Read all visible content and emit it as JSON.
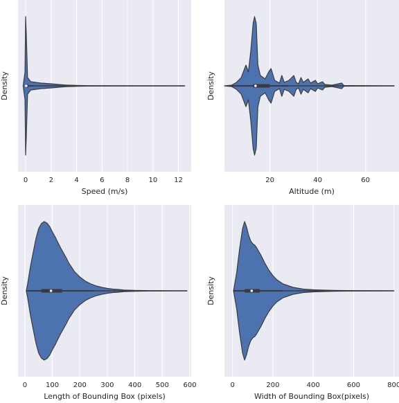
{
  "chart_data": [
    {
      "type": "violin",
      "xlabel": "Speed (m/s)",
      "ylabel": "Density",
      "xlim": [
        -0.6,
        13.0
      ],
      "xticks": [
        0,
        2,
        4,
        6,
        8,
        10,
        12
      ],
      "grid": true,
      "box": {
        "whisker_low": 0,
        "q1": 0.0,
        "median": 0.05,
        "q3": 0.2,
        "whisker_high": 0.6,
        "max": 12.5
      },
      "density": [
        [
          -0.2,
          0.0
        ],
        [
          -0.05,
          0.2
        ],
        [
          0.0,
          1.0
        ],
        [
          0.06,
          0.7
        ],
        [
          0.15,
          0.12
        ],
        [
          0.4,
          0.06
        ],
        [
          0.8,
          0.05
        ],
        [
          1.2,
          0.04
        ],
        [
          1.6,
          0.035
        ],
        [
          2.0,
          0.03
        ],
        [
          2.6,
          0.02
        ],
        [
          3.2,
          0.012
        ],
        [
          4.0,
          0.006
        ],
        [
          5.0,
          0.003
        ],
        [
          7.0,
          0.001
        ],
        [
          12.5,
          0.0
        ]
      ]
    },
    {
      "type": "violin",
      "xlabel": "Altitude (m)",
      "ylabel": "Density",
      "xlim": [
        1,
        74
      ],
      "xticks": [
        20,
        40,
        60
      ],
      "grid": true,
      "box": {
        "whisker_low": 3,
        "q1": 13,
        "median": 14,
        "q3": 20,
        "whisker_high": 28,
        "max": 72
      },
      "density": [
        [
          1,
          0.0
        ],
        [
          4,
          0.01
        ],
        [
          6,
          0.05
        ],
        [
          8,
          0.12
        ],
        [
          10,
          0.3
        ],
        [
          11,
          0.2
        ],
        [
          12,
          0.5
        ],
        [
          13,
          0.9
        ],
        [
          13.6,
          1.0
        ],
        [
          14.3,
          0.9
        ],
        [
          15,
          0.3
        ],
        [
          16,
          0.15
        ],
        [
          18,
          0.1
        ],
        [
          19.5,
          0.2
        ],
        [
          20.5,
          0.25
        ],
        [
          22,
          0.08
        ],
        [
          24,
          0.04
        ],
        [
          25,
          0.15
        ],
        [
          26,
          0.05
        ],
        [
          28,
          0.08
        ],
        [
          30,
          0.15
        ],
        [
          31,
          0.05
        ],
        [
          32,
          0.03
        ],
        [
          33,
          0.12
        ],
        [
          34,
          0.05
        ],
        [
          36,
          0.1
        ],
        [
          37,
          0.04
        ],
        [
          39,
          0.08
        ],
        [
          40,
          0.03
        ],
        [
          42,
          0.06
        ],
        [
          43,
          0.02
        ],
        [
          46,
          0.01
        ],
        [
          50,
          0.04
        ],
        [
          51,
          0.005
        ],
        [
          72,
          0.0
        ]
      ]
    },
    {
      "type": "violin",
      "xlabel": "Length of Bounding Box (pixels)",
      "ylabel": "Density",
      "xlim": [
        -25,
        605
      ],
      "xticks": [
        0,
        100,
        200,
        300,
        400,
        500,
        600
      ],
      "grid": true,
      "box": {
        "whisker_low": 5,
        "q1": 60,
        "median": 95,
        "q3": 135,
        "whisker_high": 250,
        "max": 590
      },
      "density": [
        [
          5,
          0.0
        ],
        [
          10,
          0.1
        ],
        [
          20,
          0.35
        ],
        [
          30,
          0.55
        ],
        [
          40,
          0.75
        ],
        [
          50,
          0.9
        ],
        [
          60,
          0.97
        ],
        [
          70,
          1.0
        ],
        [
          80,
          0.98
        ],
        [
          90,
          0.93
        ],
        [
          100,
          0.85
        ],
        [
          110,
          0.78
        ],
        [
          120,
          0.7
        ],
        [
          130,
          0.62
        ],
        [
          140,
          0.55
        ],
        [
          150,
          0.48
        ],
        [
          160,
          0.4
        ],
        [
          170,
          0.34
        ],
        [
          180,
          0.28
        ],
        [
          190,
          0.24
        ],
        [
          200,
          0.2
        ],
        [
          220,
          0.14
        ],
        [
          240,
          0.1
        ],
        [
          260,
          0.07
        ],
        [
          280,
          0.05
        ],
        [
          300,
          0.035
        ],
        [
          320,
          0.025
        ],
        [
          340,
          0.02
        ],
        [
          360,
          0.012
        ],
        [
          400,
          0.006
        ],
        [
          450,
          0.003
        ],
        [
          590,
          0.0
        ]
      ]
    },
    {
      "type": "violin",
      "xlabel": "Width of Bounding Box(pixels)",
      "ylabel": "Density",
      "xlim": [
        -40,
        825
      ],
      "xticks": [
        0,
        200,
        400,
        600,
        800
      ],
      "grid": true,
      "box": {
        "whisker_low": 5,
        "q1": 60,
        "median": 95,
        "q3": 135,
        "whisker_high": 250,
        "max": 800
      },
      "density": [
        [
          5,
          0.0
        ],
        [
          20,
          0.25
        ],
        [
          35,
          0.6
        ],
        [
          50,
          0.9
        ],
        [
          60,
          1.0
        ],
        [
          70,
          0.92
        ],
        [
          80,
          0.8
        ],
        [
          90,
          0.72
        ],
        [
          100,
          0.68
        ],
        [
          110,
          0.66
        ],
        [
          120,
          0.62
        ],
        [
          140,
          0.52
        ],
        [
          160,
          0.4
        ],
        [
          180,
          0.3
        ],
        [
          200,
          0.22
        ],
        [
          220,
          0.16
        ],
        [
          250,
          0.1
        ],
        [
          300,
          0.05
        ],
        [
          350,
          0.025
        ],
        [
          400,
          0.015
        ],
        [
          450,
          0.01
        ],
        [
          500,
          0.006
        ],
        [
          600,
          0.003
        ],
        [
          800,
          0.0
        ]
      ]
    }
  ]
}
